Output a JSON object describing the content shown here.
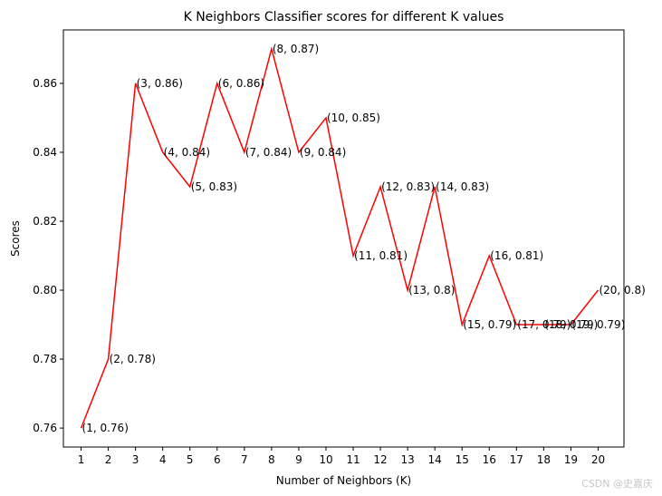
{
  "chart_data": {
    "type": "line",
    "title": "K Neighbors Classifier scores for different K values",
    "xlabel": "Number of Neighbors (K)",
    "ylabel": "Scores",
    "x": [
      1,
      2,
      3,
      4,
      5,
      6,
      7,
      8,
      9,
      10,
      11,
      12,
      13,
      14,
      15,
      16,
      17,
      18,
      19,
      20
    ],
    "series": [
      {
        "color": "#ff0000",
        "values": [
          0.76,
          0.78,
          0.86,
          0.84,
          0.83,
          0.86,
          0.84,
          0.87,
          0.84,
          0.85,
          0.81,
          0.83,
          0.8,
          0.83,
          0.79,
          0.81,
          0.79,
          0.79,
          0.79,
          0.8
        ]
      }
    ],
    "point_labels": [
      "(1, 0.76)",
      "(2, 0.78)",
      "(3, 0.86)",
      "(4, 0.84)",
      "(5, 0.83)",
      "(6, 0.86)",
      "(7, 0.84)",
      "(8, 0.87)",
      "(9, 0.84)",
      "(10, 0.85)",
      "(11, 0.81)",
      "(12, 0.83)",
      "(13, 0.8)",
      "(14, 0.83)",
      "(15, 0.79)",
      "(16, 0.81)",
      "(17, 0.79)",
      "(18, 0.79)",
      "(19, 0.79)",
      "(20, 0.8)"
    ],
    "xticks": [
      "1",
      "2",
      "3",
      "4",
      "5",
      "6",
      "7",
      "8",
      "9",
      "10",
      "11",
      "12",
      "13",
      "14",
      "15",
      "16",
      "17",
      "18",
      "19",
      "20"
    ],
    "yticks": [
      0.76,
      0.78,
      0.8,
      0.82,
      0.84,
      0.86
    ],
    "ytick_labels": [
      "0.76",
      "0.78",
      "0.80",
      "0.82",
      "0.84",
      "0.86"
    ],
    "xlim": [
      0.35,
      20.95
    ],
    "ylim": [
      0.7545,
      0.8755
    ],
    "grid": false
  },
  "watermark": "CSDN @史嘉庆"
}
